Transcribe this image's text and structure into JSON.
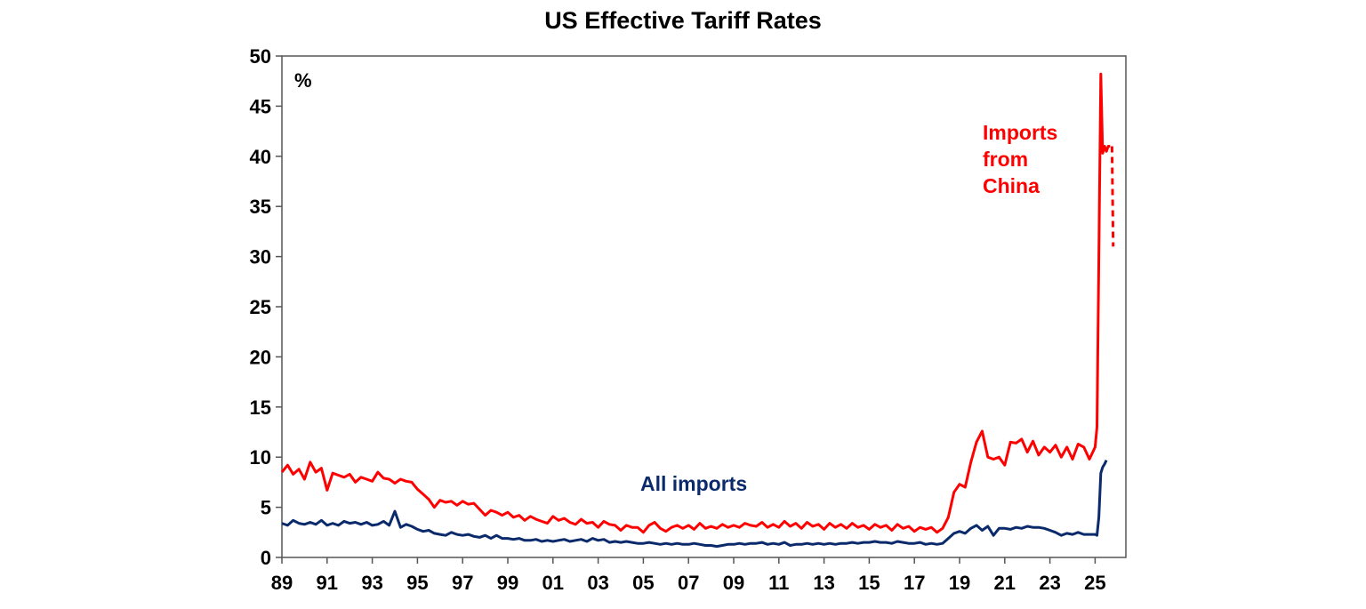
{
  "chart_data": {
    "type": "line",
    "title": "US Effective Tariff Rates",
    "unit_label": "%",
    "xlabel": "",
    "ylabel": "",
    "xlim": [
      1989,
      2026.4
    ],
    "ylim": [
      0,
      50
    ],
    "y_ticks": [
      0,
      5,
      10,
      15,
      20,
      25,
      30,
      35,
      40,
      45,
      50
    ],
    "x_ticks": [
      {
        "year": 1989,
        "label": "89"
      },
      {
        "year": 1991,
        "label": "91"
      },
      {
        "year": 1993,
        "label": "93"
      },
      {
        "year": 1995,
        "label": "95"
      },
      {
        "year": 1997,
        "label": "97"
      },
      {
        "year": 1999,
        "label": "99"
      },
      {
        "year": 2001,
        "label": "01"
      },
      {
        "year": 2003,
        "label": "03"
      },
      {
        "year": 2005,
        "label": "05"
      },
      {
        "year": 2007,
        "label": "07"
      },
      {
        "year": 2009,
        "label": "09"
      },
      {
        "year": 2011,
        "label": "11"
      },
      {
        "year": 2013,
        "label": "13"
      },
      {
        "year": 2015,
        "label": "15"
      },
      {
        "year": 2017,
        "label": "17"
      },
      {
        "year": 2019,
        "label": "19"
      },
      {
        "year": 2021,
        "label": "21"
      },
      {
        "year": 2023,
        "label": "23"
      },
      {
        "year": 2025,
        "label": "25"
      }
    ],
    "grid": false,
    "series": [
      {
        "name": "Imports from China",
        "color": "#ff0000",
        "values_by_year": {
          "1989": [
            8.5,
            9.2,
            8.3,
            8.8
          ],
          "1990": [
            7.8,
            9.5,
            8.5,
            8.9
          ],
          "1991": [
            6.7,
            8.4,
            8.2,
            8.0
          ],
          "1992": [
            8.3,
            7.5,
            8.0,
            7.8
          ],
          "1993": [
            7.6,
            8.5,
            7.9,
            7.8
          ],
          "1994": [
            7.4,
            7.8,
            7.6,
            7.5
          ],
          "1995": [
            6.8,
            6.3,
            5.8,
            5.0
          ],
          "1996": [
            5.7,
            5.5,
            5.6,
            5.2
          ],
          "1997": [
            5.6,
            5.3,
            5.4,
            4.8
          ],
          "1998": [
            4.2,
            4.7,
            4.5,
            4.2
          ],
          "1999": [
            4.5,
            4.0,
            4.2,
            3.7
          ],
          "2000": [
            4.1,
            3.8,
            3.6,
            3.4
          ],
          "2001": [
            4.1,
            3.7,
            3.9,
            3.5
          ],
          "2002": [
            3.3,
            3.8,
            3.4,
            3.5
          ],
          "2003": [
            3.0,
            3.6,
            3.3,
            3.2
          ],
          "2004": [
            2.7,
            3.2,
            3.0,
            3.0
          ],
          "2005": [
            2.5,
            3.2,
            3.5,
            2.9
          ],
          "2006": [
            2.6,
            3.0,
            3.2,
            2.9
          ],
          "2007": [
            3.2,
            2.8,
            3.4,
            2.9
          ],
          "2008": [
            3.1,
            2.9,
            3.3,
            3.0
          ],
          "2009": [
            3.2,
            3.0,
            3.4,
            3.2
          ],
          "2010": [
            3.1,
            3.5,
            3.0,
            3.3
          ],
          "2011": [
            3.0,
            3.6,
            3.1,
            3.4
          ],
          "2012": [
            2.9,
            3.5,
            3.1,
            3.3
          ],
          "2013": [
            2.8,
            3.4,
            3.0,
            3.3
          ],
          "2014": [
            2.9,
            3.4,
            3.0,
            3.2
          ],
          "2015": [
            2.8,
            3.3,
            3.0,
            3.2
          ],
          "2016": [
            2.7,
            3.3,
            2.9,
            3.1
          ],
          "2017": [
            2.6,
            3.0,
            2.8,
            3.0
          ],
          "2018": [
            2.5,
            2.9,
            4.0,
            6.5
          ],
          "2019": [
            7.3,
            7.0,
            9.5,
            11.5
          ],
          "2020": [
            12.6,
            10.0,
            9.8,
            10.0
          ],
          "2021": [
            9.2,
            11.5,
            11.4,
            11.8
          ],
          "2022": [
            10.5,
            11.6,
            10.2,
            11.0
          ],
          "2023": [
            10.5,
            11.2,
            10.0,
            11.0
          ],
          "2024": [
            9.8,
            11.3,
            11.0,
            9.8
          ],
          "2025": [
            11.0,
            13.0,
            30.0,
            48.2,
            40.3,
            41.0,
            40.5,
            41.0,
            41.0,
            null,
            null,
            null
          ]
        },
        "estimate_dashed": [
          [
            2025.75,
            41.0
          ],
          [
            2025.8,
            31.0
          ]
        ]
      },
      {
        "name": "All imports",
        "color": "#0b2a6b",
        "values_by_year": {
          "1989": [
            3.4,
            3.2,
            3.7,
            3.4
          ],
          "1990": [
            3.3,
            3.5,
            3.3,
            3.7
          ],
          "1991": [
            3.2,
            3.4,
            3.2,
            3.6
          ],
          "1992": [
            3.4,
            3.5,
            3.3,
            3.5
          ],
          "1993": [
            3.2,
            3.3,
            3.6,
            3.2
          ],
          "1994": [
            4.6,
            3.0,
            3.3,
            3.1
          ],
          "1995": [
            2.8,
            2.6,
            2.7,
            2.4
          ],
          "1996": [
            2.3,
            2.2,
            2.5,
            2.3
          ],
          "1997": [
            2.2,
            2.3,
            2.1,
            2.0
          ],
          "1998": [
            2.2,
            1.9,
            2.2,
            1.9
          ],
          "1999": [
            1.9,
            1.8,
            1.9,
            1.7
          ],
          "2000": [
            1.7,
            1.8,
            1.6,
            1.7
          ],
          "2001": [
            1.6,
            1.7,
            1.8,
            1.6
          ],
          "2002": [
            1.7,
            1.8,
            1.6,
            1.9
          ],
          "2003": [
            1.7,
            1.8,
            1.5,
            1.6
          ],
          "2004": [
            1.5,
            1.6,
            1.5,
            1.4
          ],
          "2005": [
            1.4,
            1.5,
            1.4,
            1.3
          ],
          "2006": [
            1.4,
            1.3,
            1.4,
            1.3
          ],
          "2007": [
            1.3,
            1.4,
            1.3,
            1.2
          ],
          "2008": [
            1.2,
            1.1,
            1.2,
            1.3
          ],
          "2009": [
            1.3,
            1.4,
            1.3,
            1.4
          ],
          "2010": [
            1.4,
            1.5,
            1.3,
            1.4
          ],
          "2011": [
            1.3,
            1.5,
            1.2,
            1.3
          ],
          "2012": [
            1.3,
            1.4,
            1.3,
            1.4
          ],
          "2013": [
            1.3,
            1.4,
            1.3,
            1.4
          ],
          "2014": [
            1.4,
            1.5,
            1.4,
            1.5
          ],
          "2015": [
            1.5,
            1.6,
            1.5,
            1.5
          ],
          "2016": [
            1.4,
            1.6,
            1.5,
            1.4
          ],
          "2017": [
            1.4,
            1.5,
            1.3,
            1.4
          ],
          "2018": [
            1.3,
            1.4,
            1.9,
            2.4
          ],
          "2019": [
            2.6,
            2.4,
            2.9,
            3.2
          ],
          "2020": [
            2.7,
            3.1,
            2.2,
            2.9
          ],
          "2021": [
            2.9,
            2.8,
            3.0,
            2.9
          ],
          "2022": [
            3.1,
            3.0,
            3.0,
            2.9
          ],
          "2023": [
            2.7,
            2.5,
            2.2,
            2.4
          ],
          "2024": [
            2.3,
            2.5,
            2.3,
            2.3
          ],
          "2025": [
            2.3,
            2.2,
            4.0,
            8.4,
            9.0,
            9.3,
            9.7,
            null,
            null,
            null,
            null,
            null
          ]
        }
      }
    ],
    "annotations": {
      "china_label": [
        "Imports",
        "from",
        "China"
      ],
      "all_label": "All imports"
    }
  }
}
